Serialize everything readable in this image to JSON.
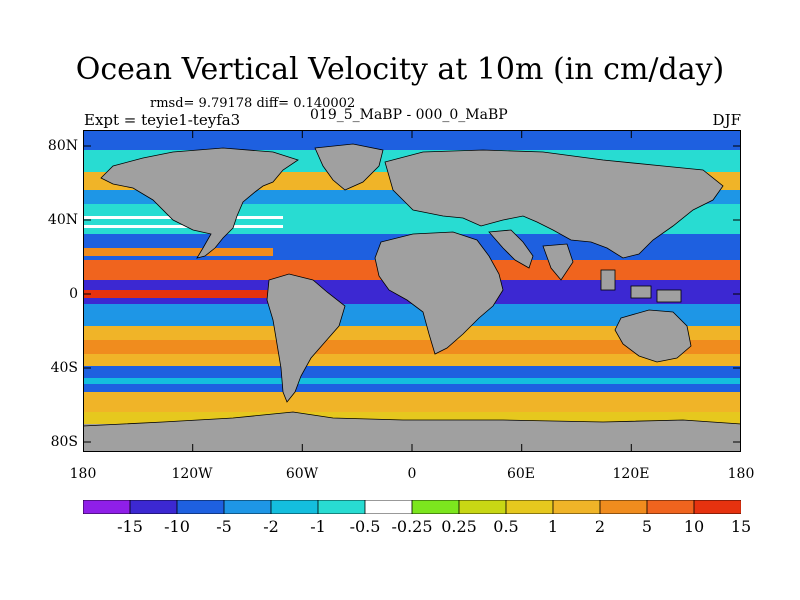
{
  "title": "Ocean Vertical Velocity at 10m (in cm/day)",
  "stats": "rmsd= 9.79178 diff= 0.140002",
  "period": "019_5_MaBP - 000_0_MaBP",
  "experiment": "Expt = teyie1-teyfa3",
  "season": "DJF",
  "lat_labels": [
    "80N",
    "40N",
    "0",
    "40S",
    "80S"
  ],
  "lon_labels": [
    "180",
    "120W",
    "60W",
    "0",
    "60E",
    "120E",
    "180"
  ],
  "colors": {
    "land": "#a0a0a0",
    "coastline": "#000000"
  },
  "colorbar": {
    "levels": [
      "-15",
      "-10",
      "-5",
      "-2",
      "-1",
      "-0.5",
      "-0.25",
      "0.25",
      "0.5",
      "1",
      "2",
      "5",
      "10",
      "15"
    ],
    "colors": [
      "#8f1fe8",
      "#3c28d2",
      "#1e60e0",
      "#1e96e6",
      "#14bede",
      "#28dcd2",
      "#ffffff",
      "#7ce61e",
      "#c8d714",
      "#e6c81e",
      "#f0b428",
      "#f08c1e",
      "#f0641e",
      "#e6320f"
    ]
  }
}
